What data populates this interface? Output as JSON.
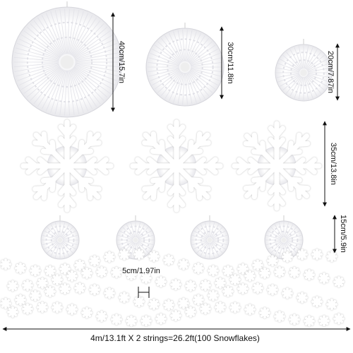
{
  "dimensions": {
    "large_fan": "40cm/15.7in",
    "medium_fan": "30cm/11.8in",
    "small_fan": "20cm/7.87in",
    "snowflake_fan": "35cm/13.8in",
    "mini_fan": "15cm/5.9in",
    "garland_flake": "5cm/1.97in",
    "garland_length": "4m/13.1ft X 2 strings=26.2ft(100 Snowflakes)"
  }
}
